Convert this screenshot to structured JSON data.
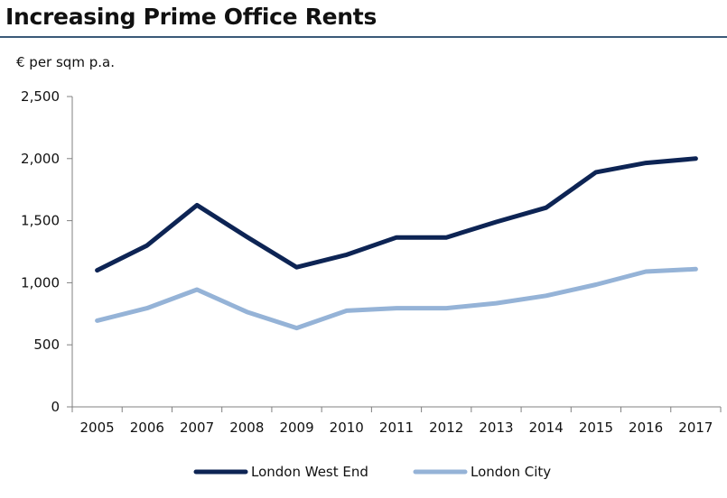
{
  "header": {
    "title": "Increasing Prime Office Rents"
  },
  "chart_data": {
    "type": "line",
    "title": "Increasing Prime Office Rents",
    "ylabel": "€ per sqm p.a.",
    "xlabel": "",
    "x": [
      "2005",
      "2006",
      "2007",
      "2008",
      "2009",
      "2010",
      "2011",
      "2012",
      "2013",
      "2014",
      "2015",
      "2016",
      "2017"
    ],
    "ylim": [
      0,
      2500
    ],
    "yticks": [
      0,
      500,
      1000,
      1500,
      2000,
      2500
    ],
    "ytick_labels": [
      "0",
      "500",
      "1,000",
      "1,500",
      "2,000",
      "2,500"
    ],
    "grid": "none",
    "legend_position": "bottom-center",
    "series": [
      {
        "name": "London West End",
        "color": "#0d2454",
        "values": [
          1100,
          1300,
          1625,
          1370,
          1125,
          1225,
          1365,
          1365,
          1490,
          1605,
          1890,
          1965,
          2000
        ]
      },
      {
        "name": "London City",
        "color": "#95b3d7",
        "values": [
          695,
          795,
          945,
          765,
          635,
          775,
          795,
          795,
          835,
          895,
          985,
          1090,
          1110
        ]
      }
    ]
  }
}
